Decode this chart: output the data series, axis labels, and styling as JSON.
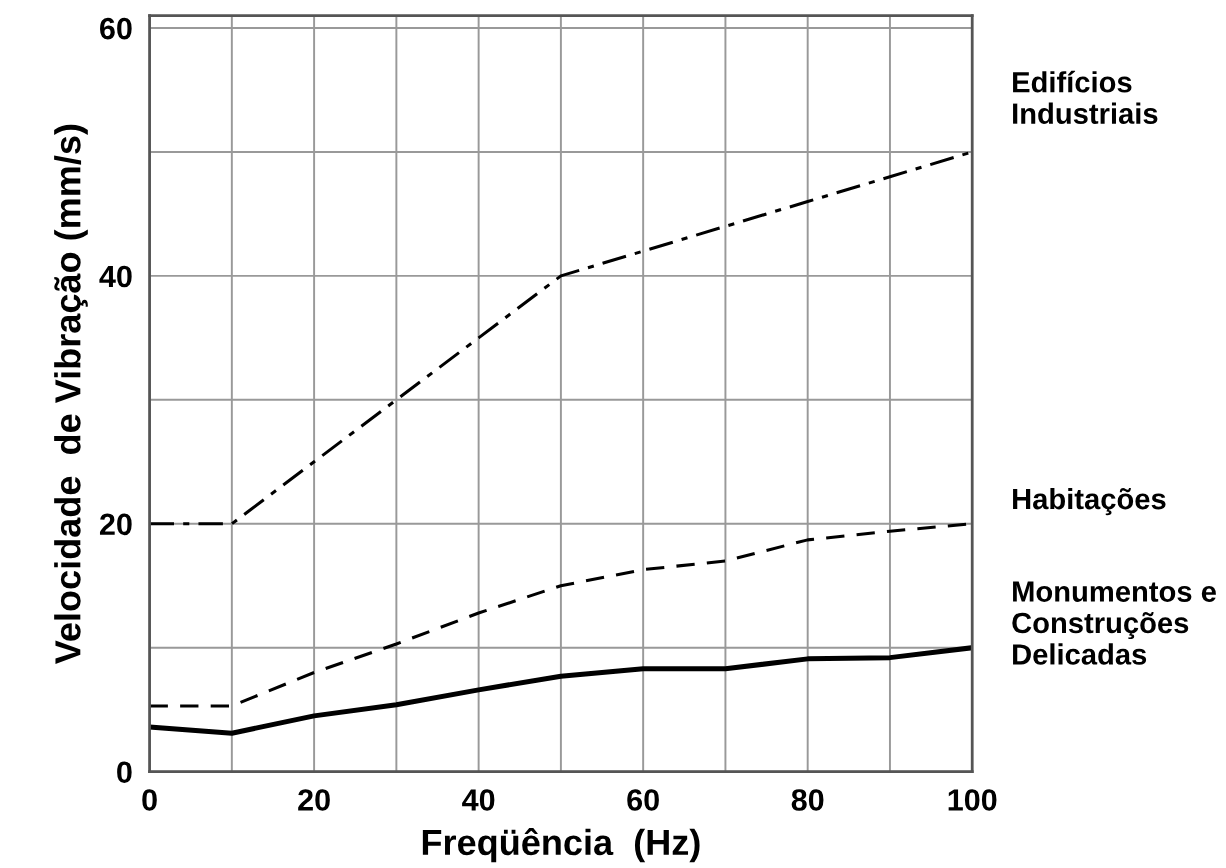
{
  "chart_data": {
    "type": "line",
    "xlabel": "Freqüência  (Hz)",
    "ylabel": "Velocidade  de Vibração (mm/s)",
    "x": [
      0,
      10,
      20,
      30,
      40,
      50,
      60,
      70,
      80,
      90,
      100
    ],
    "series": [
      {
        "name": "Edifícios\nIndustriais",
        "color": "#000000",
        "line_style": "dashdot",
        "values": [
          20,
          20,
          25,
          30,
          35,
          40,
          42,
          44,
          46,
          48,
          50
        ]
      },
      {
        "name": "Habitações",
        "color": "#000000",
        "line_style": "dashed",
        "values": [
          5.3,
          5.3,
          8,
          10.3,
          12.8,
          15,
          16.3,
          17,
          18.7,
          19.4,
          20
        ]
      },
      {
        "name": "Monumentos e\nConstruções\nDelicadas",
        "color": "#000000",
        "line_style": "solid",
        "values": [
          3.6,
          3.1,
          4.5,
          5.4,
          6.6,
          7.7,
          8.3,
          8.3,
          9.1,
          9.2,
          10
        ]
      }
    ],
    "xlim": [
      0,
      100
    ],
    "ylim": [
      0,
      61
    ],
    "xticks": [
      0,
      {
        "value": 10,
        "label": null
      },
      20,
      {
        "value": 30,
        "label": null
      },
      40,
      {
        "value": 50,
        "label": null
      },
      60,
      {
        "value": 70,
        "label": null
      },
      80,
      {
        "value": 90,
        "label": null
      },
      100
    ],
    "yticks": [
      0,
      {
        "value": 10,
        "label": null
      },
      20,
      {
        "value": 30,
        "label": null
      },
      40,
      {
        "value": 50,
        "label": null
      },
      60
    ],
    "grid": true,
    "legend": false,
    "marker": "none"
  }
}
